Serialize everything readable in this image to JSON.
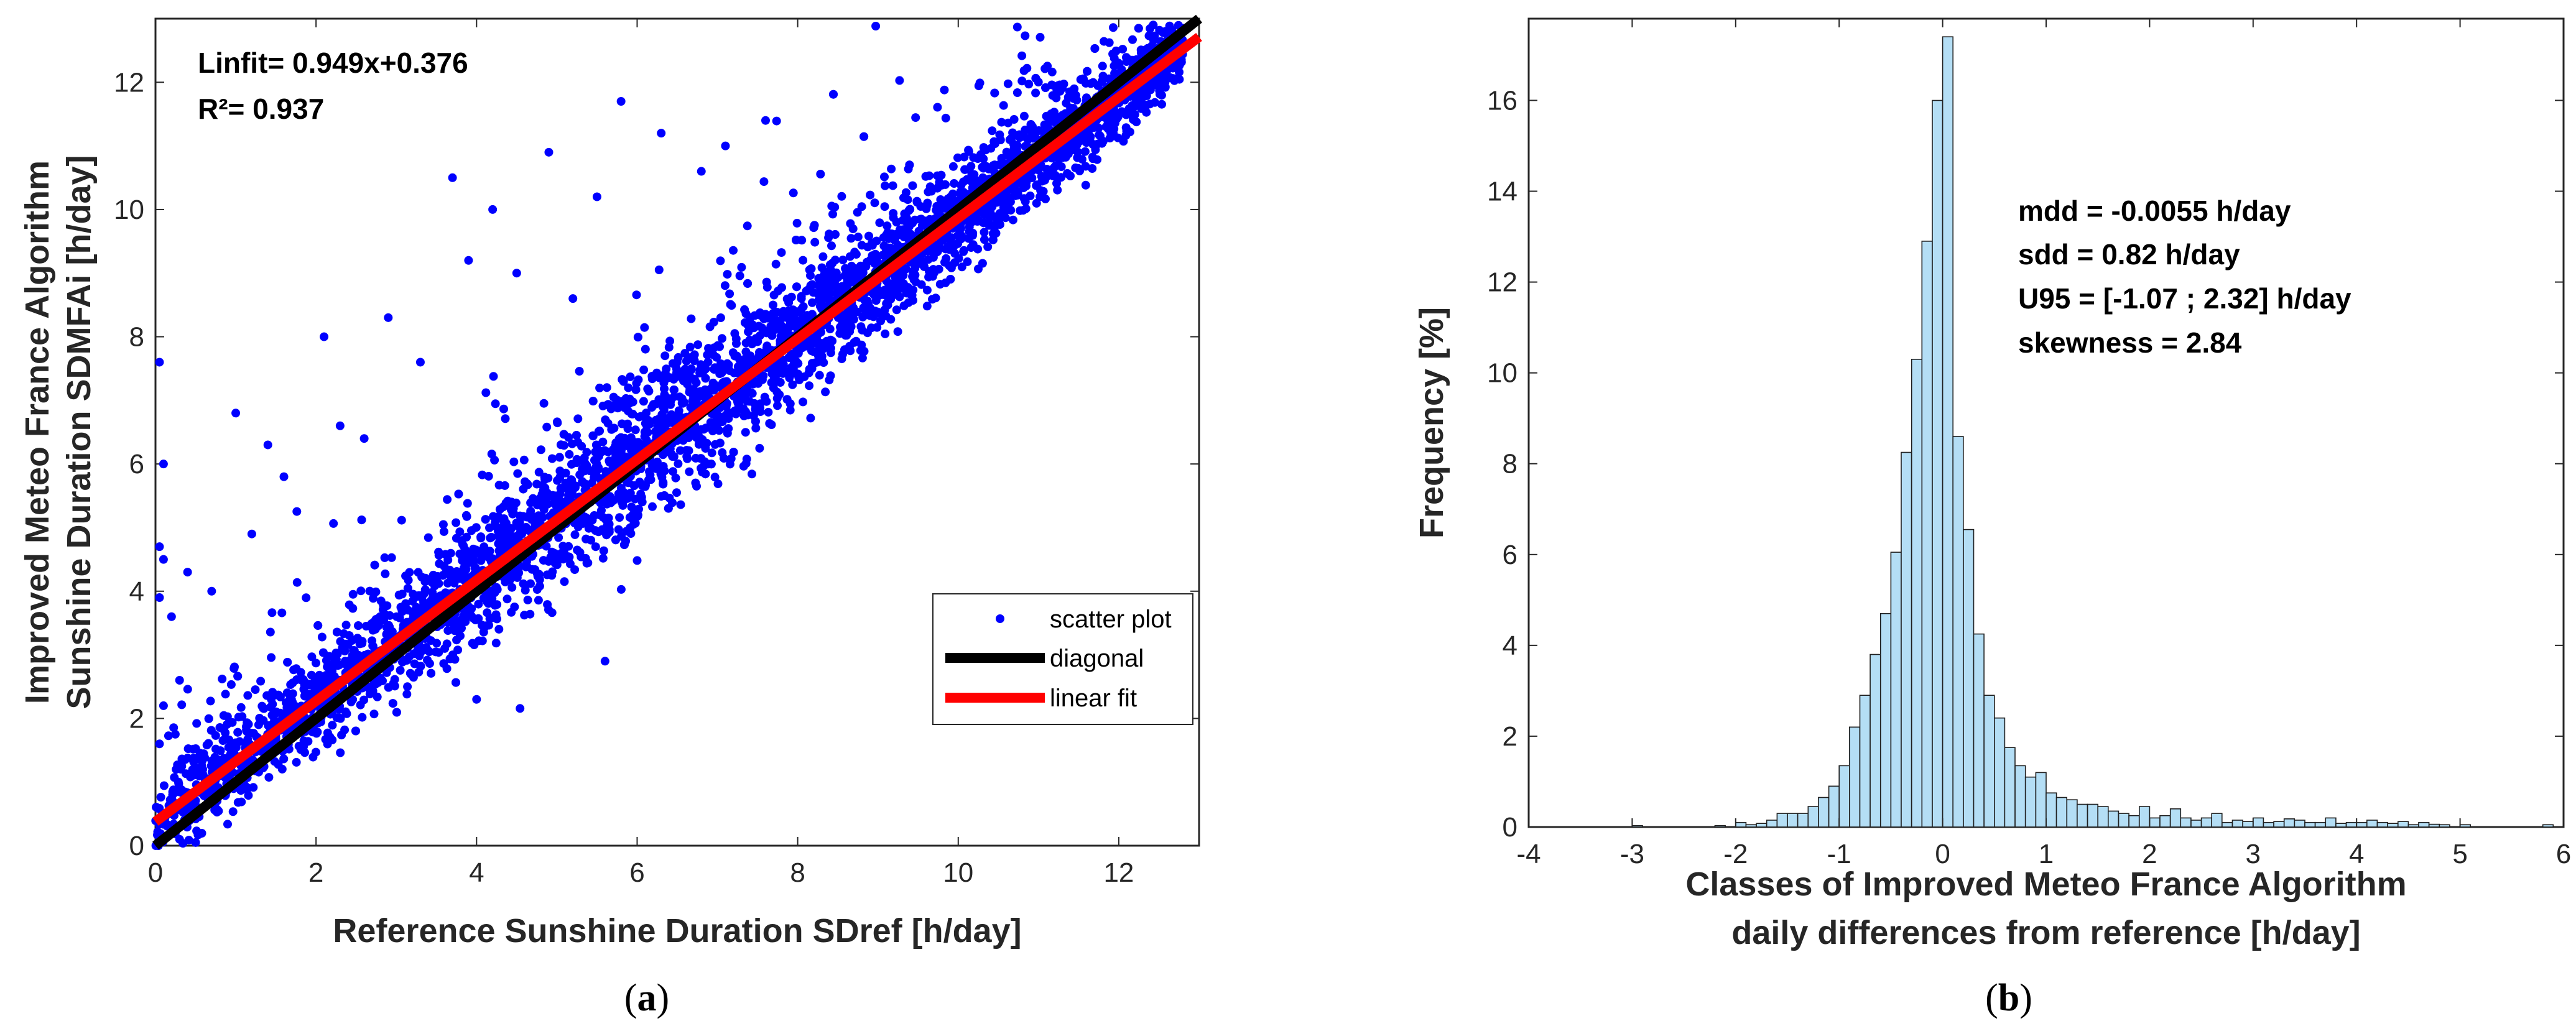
{
  "colors": {
    "scatter": "#0000ff",
    "diagonal": "#000000",
    "linear_fit": "#ff0000",
    "bars_fill": "#b4def5",
    "bars_edge": "#1f1f1f",
    "axes": "#262626"
  },
  "chart_data": [
    {
      "type": "scatter",
      "panel_caption_prefix": "(",
      "panel_caption_letter": "a",
      "panel_caption_suffix": ")",
      "xlabel": "Reference Sunshine Duration SDref [h/day]",
      "ylabel_line1": "Improved Meteo France Algorithm",
      "ylabel_line2": "Sunshine Duration SDMFAi [h/day]",
      "xlim": [
        0,
        13
      ],
      "ylim": [
        0,
        13
      ],
      "xticks": [
        0,
        2,
        4,
        6,
        8,
        10,
        12
      ],
      "yticks": [
        0,
        2,
        4,
        6,
        8,
        10,
        12
      ],
      "annotation_fit": "Linfit= 0.949x+0.376",
      "annotation_r2": "R²= 0.937",
      "legend_position": "center-right",
      "legend": [
        "scatter plot",
        "diagonal",
        "linear fit"
      ],
      "diagonal": {
        "x": [
          0,
          13
        ],
        "y": [
          0,
          13
        ]
      },
      "linear_fit": {
        "slope": 0.949,
        "intercept": 0.376,
        "x": [
          0,
          13
        ]
      },
      "point_count_approx": 4500,
      "outliers": [
        {
          "x": 0.05,
          "y": 7.6
        },
        {
          "x": 0.1,
          "y": 6.0
        },
        {
          "x": 0.05,
          "y": 4.7
        },
        {
          "x": 0.1,
          "y": 4.5
        },
        {
          "x": 0.05,
          "y": 3.9
        },
        {
          "x": 0.2,
          "y": 3.6
        },
        {
          "x": 0.4,
          "y": 4.3
        },
        {
          "x": 0.7,
          "y": 4.0
        },
        {
          "x": 1.0,
          "y": 6.8
        },
        {
          "x": 1.4,
          "y": 6.3
        },
        {
          "x": 1.6,
          "y": 5.8
        },
        {
          "x": 2.1,
          "y": 8.0
        },
        {
          "x": 2.3,
          "y": 6.6
        },
        {
          "x": 2.6,
          "y": 6.4
        },
        {
          "x": 2.9,
          "y": 8.3
        },
        {
          "x": 3.3,
          "y": 7.6
        },
        {
          "x": 3.7,
          "y": 10.5
        },
        {
          "x": 4.2,
          "y": 10.0
        },
        {
          "x": 4.9,
          "y": 10.9
        },
        {
          "x": 5.5,
          "y": 10.2
        },
        {
          "x": 5.8,
          "y": 11.7
        },
        {
          "x": 3.9,
          "y": 9.2
        },
        {
          "x": 4.5,
          "y": 9.0
        },
        {
          "x": 6.3,
          "y": 11.2
        },
        {
          "x": 7.1,
          "y": 11.0
        },
        {
          "x": 5.2,
          "y": 8.6
        },
        {
          "x": 1.2,
          "y": 4.9
        },
        {
          "x": 0.3,
          "y": 2.6
        },
        {
          "x": 0.1,
          "y": 2.2
        },
        {
          "x": 0.05,
          "y": 1.6
        },
        {
          "x": 4.0,
          "y": 2.3
        },
        {
          "x": 5.6,
          "y": 2.9
        },
        {
          "x": 0.5,
          "y": 0.05
        },
        {
          "x": 0.3,
          "y": 0.1
        },
        {
          "x": 6.8,
          "y": 10.6
        },
        {
          "x": 7.6,
          "y": 11.4
        }
      ]
    },
    {
      "type": "bar",
      "panel_caption_prefix": "(",
      "panel_caption_letter": "b",
      "panel_caption_suffix": ")",
      "xlabel_line1": "Classes of Improved Meteo France Algorithm",
      "xlabel_line2": "daily differences from reference [h/day]",
      "ylabel": "Frequency  [%]",
      "xlim": [
        -4,
        6
      ],
      "ylim": [
        0,
        17.8
      ],
      "xticks": [
        -4,
        -3,
        -2,
        -1,
        0,
        1,
        2,
        3,
        4,
        5,
        6
      ],
      "yticks": [
        0,
        2,
        4,
        6,
        8,
        10,
        12,
        14,
        16
      ],
      "bin_width": 0.1,
      "annotations": [
        "mdd = -0.0055 h/day",
        "sdd = 0.82 h/day",
        "U95 = [-1.07 ; 2.32] h/day",
        "skewness = 2.84"
      ],
      "bins_left_edge": [
        -3.0,
        -2.2,
        -2.0,
        -1.9,
        -1.8,
        -1.7,
        -1.6,
        -1.5,
        -1.4,
        -1.3,
        -1.2,
        -1.1,
        -1.0,
        -0.9,
        -0.8,
        -0.7,
        -0.6,
        -0.5,
        -0.4,
        -0.3,
        -0.2,
        -0.1,
        0.0,
        0.1,
        0.2,
        0.3,
        0.4,
        0.5,
        0.6,
        0.7,
        0.8,
        0.9,
        1.0,
        1.1,
        1.2,
        1.3,
        1.4,
        1.5,
        1.6,
        1.7,
        1.8,
        1.9,
        2.0,
        2.1,
        2.2,
        2.3,
        2.4,
        2.5,
        2.6,
        2.7,
        2.8,
        2.9,
        3.0,
        3.1,
        3.2,
        3.3,
        3.4,
        3.5,
        3.6,
        3.7,
        3.8,
        3.9,
        4.0,
        4.1,
        4.2,
        4.3,
        4.4,
        4.5,
        4.6,
        4.7,
        4.8,
        5.0,
        5.8
      ],
      "values": [
        0.03,
        0.03,
        0.1,
        0.05,
        0.08,
        0.15,
        0.3,
        0.3,
        0.3,
        0.45,
        0.65,
        0.9,
        1.35,
        2.2,
        2.9,
        3.8,
        4.7,
        6.05,
        8.25,
        10.3,
        12.9,
        16.0,
        17.4,
        8.6,
        6.55,
        4.25,
        2.9,
        2.4,
        1.75,
        1.35,
        1.1,
        1.2,
        0.75,
        0.65,
        0.6,
        0.5,
        0.5,
        0.45,
        0.35,
        0.3,
        0.25,
        0.45,
        0.2,
        0.25,
        0.4,
        0.2,
        0.15,
        0.2,
        0.3,
        0.1,
        0.15,
        0.12,
        0.2,
        0.1,
        0.12,
        0.18,
        0.15,
        0.1,
        0.1,
        0.2,
        0.08,
        0.1,
        0.1,
        0.15,
        0.1,
        0.08,
        0.12,
        0.05,
        0.1,
        0.06,
        0.05,
        0.05,
        0.05
      ]
    }
  ]
}
